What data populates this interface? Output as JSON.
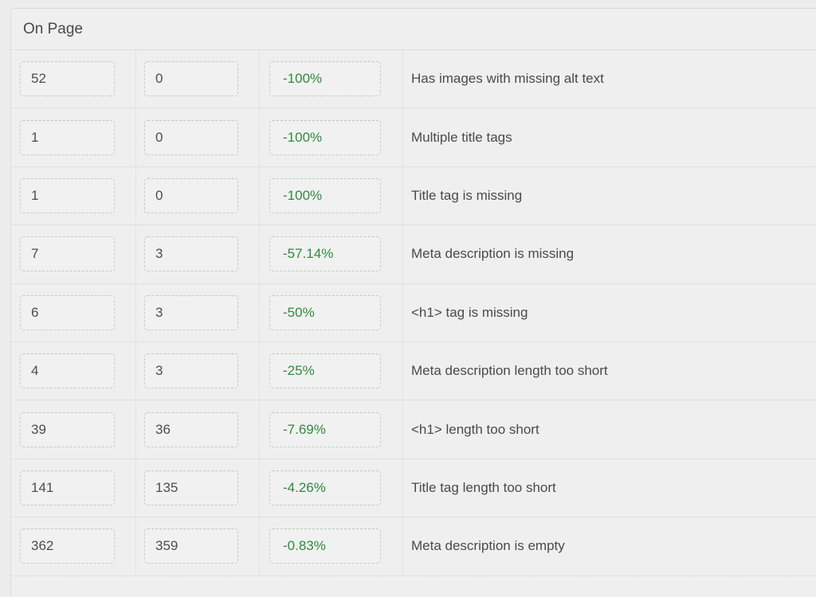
{
  "panel": {
    "title": "On Page"
  },
  "colors": {
    "positive_change_green": "#2e8b3d",
    "text_dark_gray": "#4a4a4a"
  },
  "table": {
    "rows": [
      {
        "before": "52",
        "after": "0",
        "change": "-100%",
        "label": "Has images with missing alt text"
      },
      {
        "before": "1",
        "after": "0",
        "change": "-100%",
        "label": "Multiple title tags"
      },
      {
        "before": "1",
        "after": "0",
        "change": "-100%",
        "label": "Title tag is missing"
      },
      {
        "before": "7",
        "after": "3",
        "change": "-57.14%",
        "label": "Meta description is missing"
      },
      {
        "before": "6",
        "after": "3",
        "change": "-50%",
        "label": "<h1> tag is missing"
      },
      {
        "before": "4",
        "after": "3",
        "change": "-25%",
        "label": "Meta description length too short"
      },
      {
        "before": "39",
        "after": "36",
        "change": "-7.69%",
        "label": "<h1> length too short"
      },
      {
        "before": "141",
        "after": "135",
        "change": "-4.26%",
        "label": "Title tag length too short"
      },
      {
        "before": "362",
        "after": "359",
        "change": "-0.83%",
        "label": "Meta description is empty"
      }
    ]
  }
}
